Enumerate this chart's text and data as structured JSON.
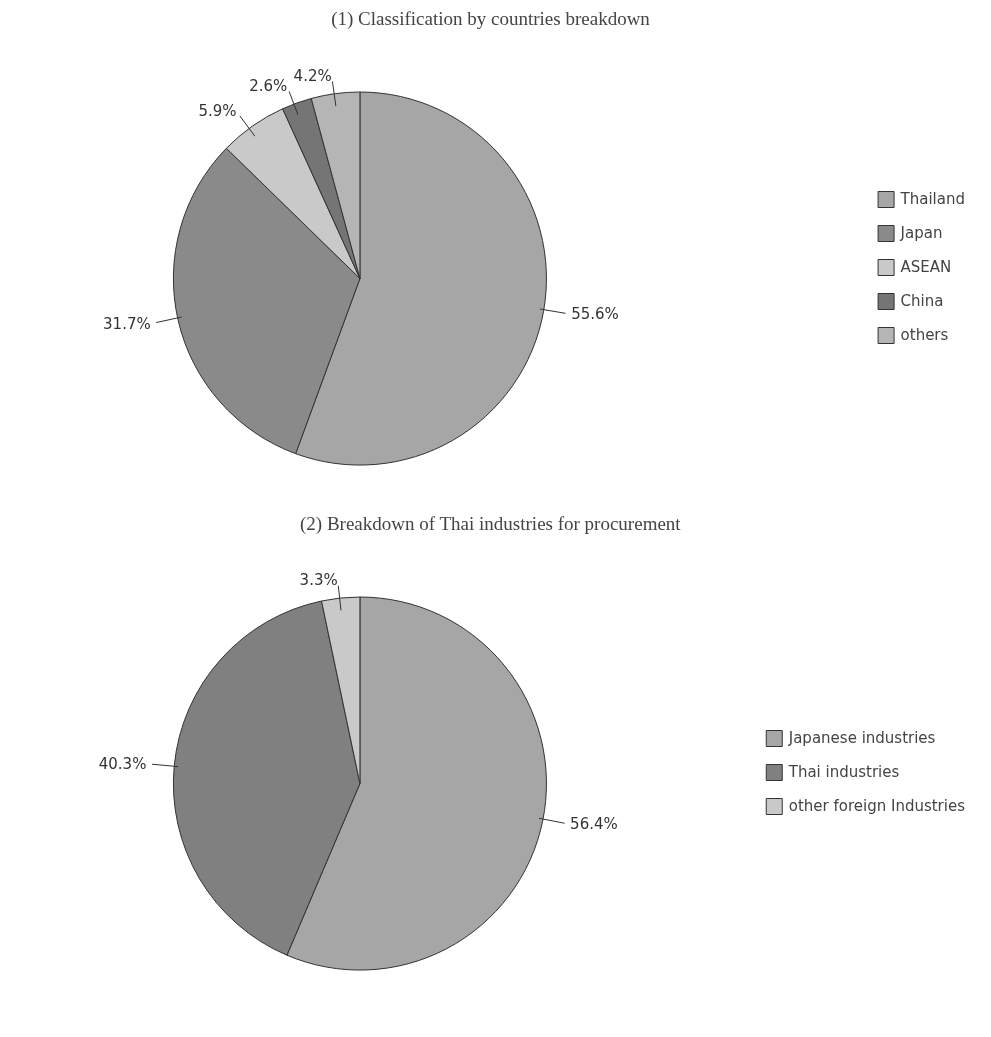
{
  "chart_data": [
    {
      "type": "pie",
      "title": "(1) Classification by countries breakdown",
      "categories": [
        "Thailand",
        "Japan",
        "ASEAN",
        "China",
        "others"
      ],
      "values": [
        55.6,
        31.7,
        5.9,
        2.6,
        4.2
      ],
      "value_labels": [
        "55.6%",
        "31.7%",
        "5.9%",
        "2.6%",
        "4.2%"
      ],
      "colors": [
        "#a6a6a6",
        "#8a8a8a",
        "#c9c9c9",
        "#757575",
        "#b5b5b5"
      ],
      "legend": "right"
    },
    {
      "type": "pie",
      "title": "(2) Breakdown of Thai industries for procurement",
      "categories": [
        "Japanese industries",
        "Thai industries",
        "other foreign Industries"
      ],
      "values": [
        56.4,
        40.3,
        3.3
      ],
      "value_labels": [
        "56.4%",
        "40.3%",
        "3.3%"
      ],
      "colors": [
        "#a6a6a6",
        "#808080",
        "#c9c9c9"
      ],
      "legend": "right"
    }
  ]
}
